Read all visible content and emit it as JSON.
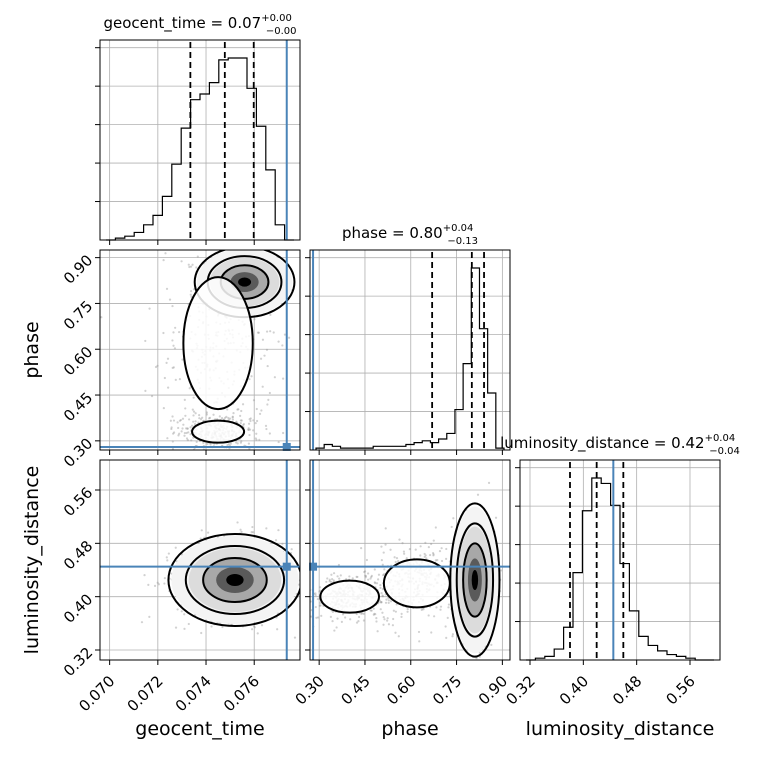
{
  "chart_data": {
    "type": "corner",
    "parameters": [
      {
        "name": "geocent_time",
        "title_prefix": "geocent_time = 0.07",
        "title_plus": "+0.00",
        "title_minus": "−0.00",
        "range": [
          0.0696,
          0.0779
        ],
        "ticks": [
          0.07,
          0.072,
          0.074,
          0.076
        ],
        "tick_labels": [
          "0.070",
          "0.072",
          "0.074",
          "0.076"
        ],
        "quantiles": [
          0.07335,
          0.07478,
          0.07598
        ],
        "truth": 0.07735,
        "hist_values": [
          0,
          1,
          2,
          4,
          8,
          13,
          23,
          40,
          59,
          74,
          77,
          83,
          95,
          96,
          96,
          80,
          60,
          37,
          8,
          0
        ]
      },
      {
        "name": "phase",
        "title_prefix": "phase = 0.80",
        "title_plus": "+0.04",
        "title_minus": "−0.13",
        "range": [
          0.27,
          0.925
        ],
        "ticks": [
          0.3,
          0.45,
          0.6,
          0.75,
          0.9
        ],
        "tick_labels": [
          "0.30",
          "0.45",
          "0.60",
          "0.75",
          "0.90"
        ],
        "quantiles": [
          0.67,
          0.8,
          0.84
        ],
        "truth": 0.28,
        "hist_values": [
          1,
          3,
          2,
          1,
          1,
          1,
          1,
          2,
          2,
          2,
          2,
          3,
          4,
          5,
          4,
          6,
          9,
          22,
          47,
          99,
          66,
          31,
          1
        ]
      },
      {
        "name": "luminosity_distance",
        "title_prefix": "luminosity_distance = 0.42",
        "title_plus": "+0.04",
        "title_minus": "−0.04",
        "range": [
          0.305,
          0.605
        ],
        "ticks": [
          0.32,
          0.4,
          0.48,
          0.56
        ],
        "tick_labels": [
          "0.32",
          "0.40",
          "0.48",
          "0.56"
        ],
        "quantiles": [
          0.38,
          0.42,
          0.46
        ],
        "truth": 0.445,
        "hist_values": [
          0,
          1,
          2,
          6,
          18,
          48,
          82,
          100,
          97,
          85,
          53,
          27,
          13,
          8,
          5,
          3,
          2,
          1,
          0,
          0
        ]
      }
    ],
    "axis_labels": [
      "geocent_time",
      "phase",
      "luminosity_distance"
    ],
    "truth_color": "#4a84b8",
    "grid": true
  }
}
